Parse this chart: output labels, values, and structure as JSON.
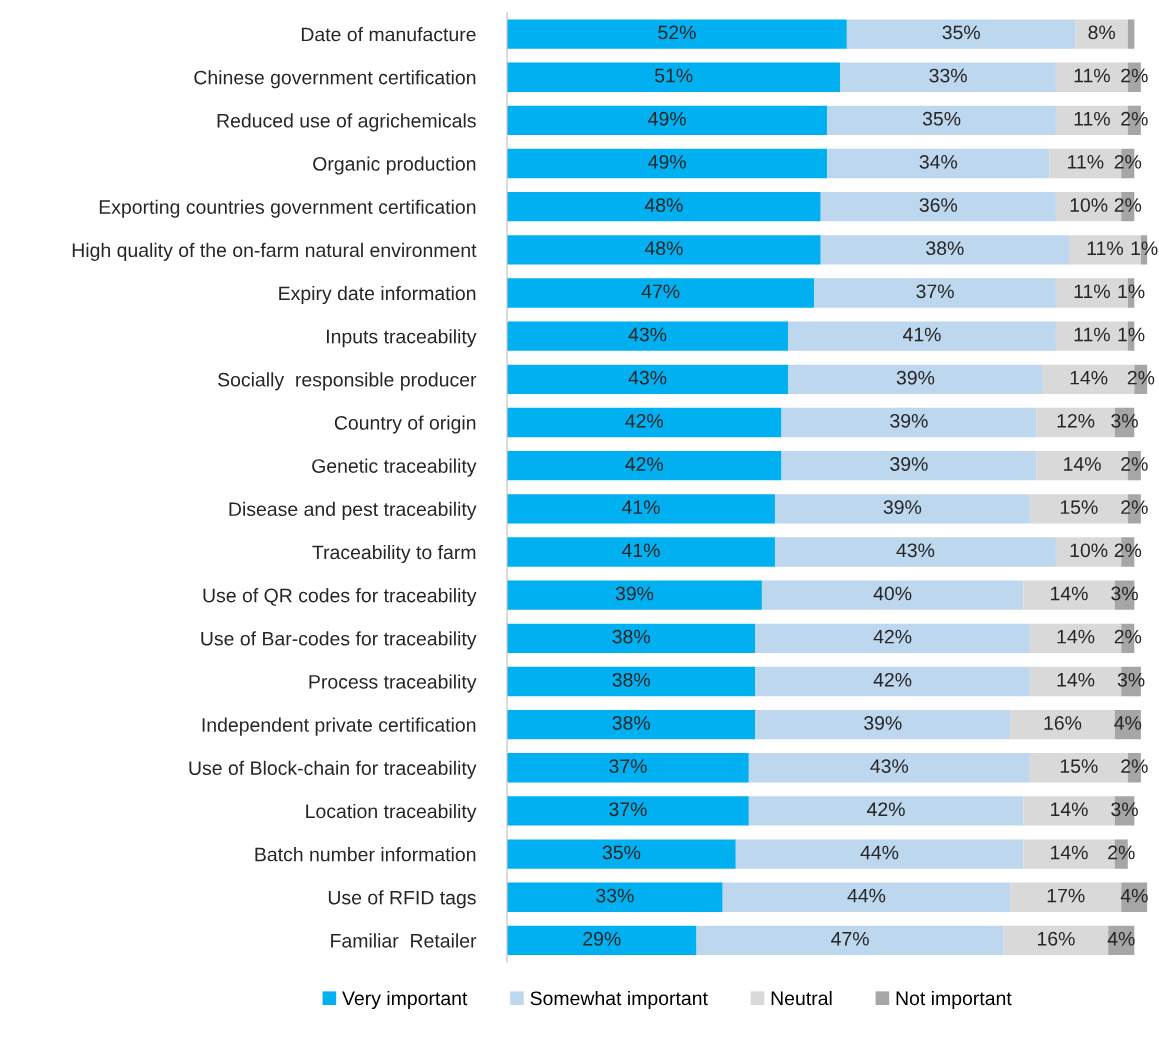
{
  "chart_data": {
    "type": "bar",
    "orientation": "horizontal",
    "stacked": true,
    "legend": "bottom",
    "grid": false,
    "categories": [
      "Date of manufacture",
      "Chinese government certification",
      "Reduced use of agrichemicals",
      "Organic production",
      "Exporting countries government certification",
      "High quality of the on-farm natural environment",
      "Expiry date information",
      "Inputs traceability",
      "Socially  responsible producer",
      "Country of origin",
      "Genetic traceability",
      "Disease and pest traceability",
      "Traceability to farm",
      "Use of QR codes for traceability",
      "Use of Bar-codes for traceability",
      "Process traceability",
      "Independent private certification",
      "Use of Block-chain for traceability",
      "Location traceability",
      "Batch number information",
      "Use of RFID tags",
      "Familiar  Retailer"
    ],
    "series": [
      {
        "name": "Very important",
        "color": "#00b0f0",
        "values": [
          52,
          51,
          49,
          49,
          48,
          48,
          47,
          43,
          43,
          42,
          42,
          41,
          41,
          39,
          38,
          38,
          38,
          37,
          37,
          35,
          33,
          29
        ],
        "value_labels": [
          "52%",
          "51%",
          "49%",
          "49%",
          "48%",
          "48%",
          "47%",
          "43%",
          "43%",
          "42%",
          "42%",
          "41%",
          "41%",
          "39%",
          "38%",
          "38%",
          "38%",
          "37%",
          "37%",
          "35%",
          "33%",
          "29%"
        ]
      },
      {
        "name": "Somewhat important",
        "color": "#bdd7ee",
        "values": [
          35,
          33,
          35,
          34,
          36,
          38,
          37,
          41,
          39,
          39,
          39,
          39,
          43,
          40,
          42,
          42,
          39,
          43,
          42,
          44,
          44,
          47
        ],
        "value_labels": [
          "35%",
          "33%",
          "35%",
          "34%",
          "36%",
          "38%",
          "37%",
          "41%",
          "39%",
          "39%",
          "39%",
          "39%",
          "43%",
          "40%",
          "42%",
          "42%",
          "39%",
          "43%",
          "42%",
          "44%",
          "44%",
          "47%"
        ]
      },
      {
        "name": "Neutral",
        "color": "#d9d9d9",
        "values": [
          8,
          11,
          11,
          11,
          10,
          11,
          11,
          11,
          14,
          12,
          14,
          15,
          10,
          14,
          14,
          14,
          16,
          15,
          14,
          14,
          17,
          16
        ],
        "value_labels": [
          "8%",
          "11%",
          "11%",
          "11%",
          "10%",
          "11%",
          "11%",
          "11%",
          "14%",
          "12%",
          "14%",
          "15%",
          "10%",
          "14%",
          "14%",
          "14%",
          "16%",
          "15%",
          "14%",
          "14%",
          "17%",
          "16%"
        ]
      },
      {
        "name": "Not important",
        "color": "#a6a6a6",
        "values": [
          1,
          2,
          2,
          2,
          2,
          1,
          1,
          1,
          2,
          3,
          2,
          2,
          2,
          3,
          2,
          3,
          4,
          2,
          3,
          2,
          4,
          4
        ],
        "value_labels": [
          null,
          "2%",
          "2%",
          "2%",
          "2%",
          "1%",
          "1%",
          "1%",
          "2%",
          "3%",
          "2%",
          "2%",
          "2%",
          "3%",
          "2%",
          "3%",
          "4%",
          "2%",
          "3%",
          "2%",
          "4%",
          "4%"
        ]
      }
    ]
  }
}
